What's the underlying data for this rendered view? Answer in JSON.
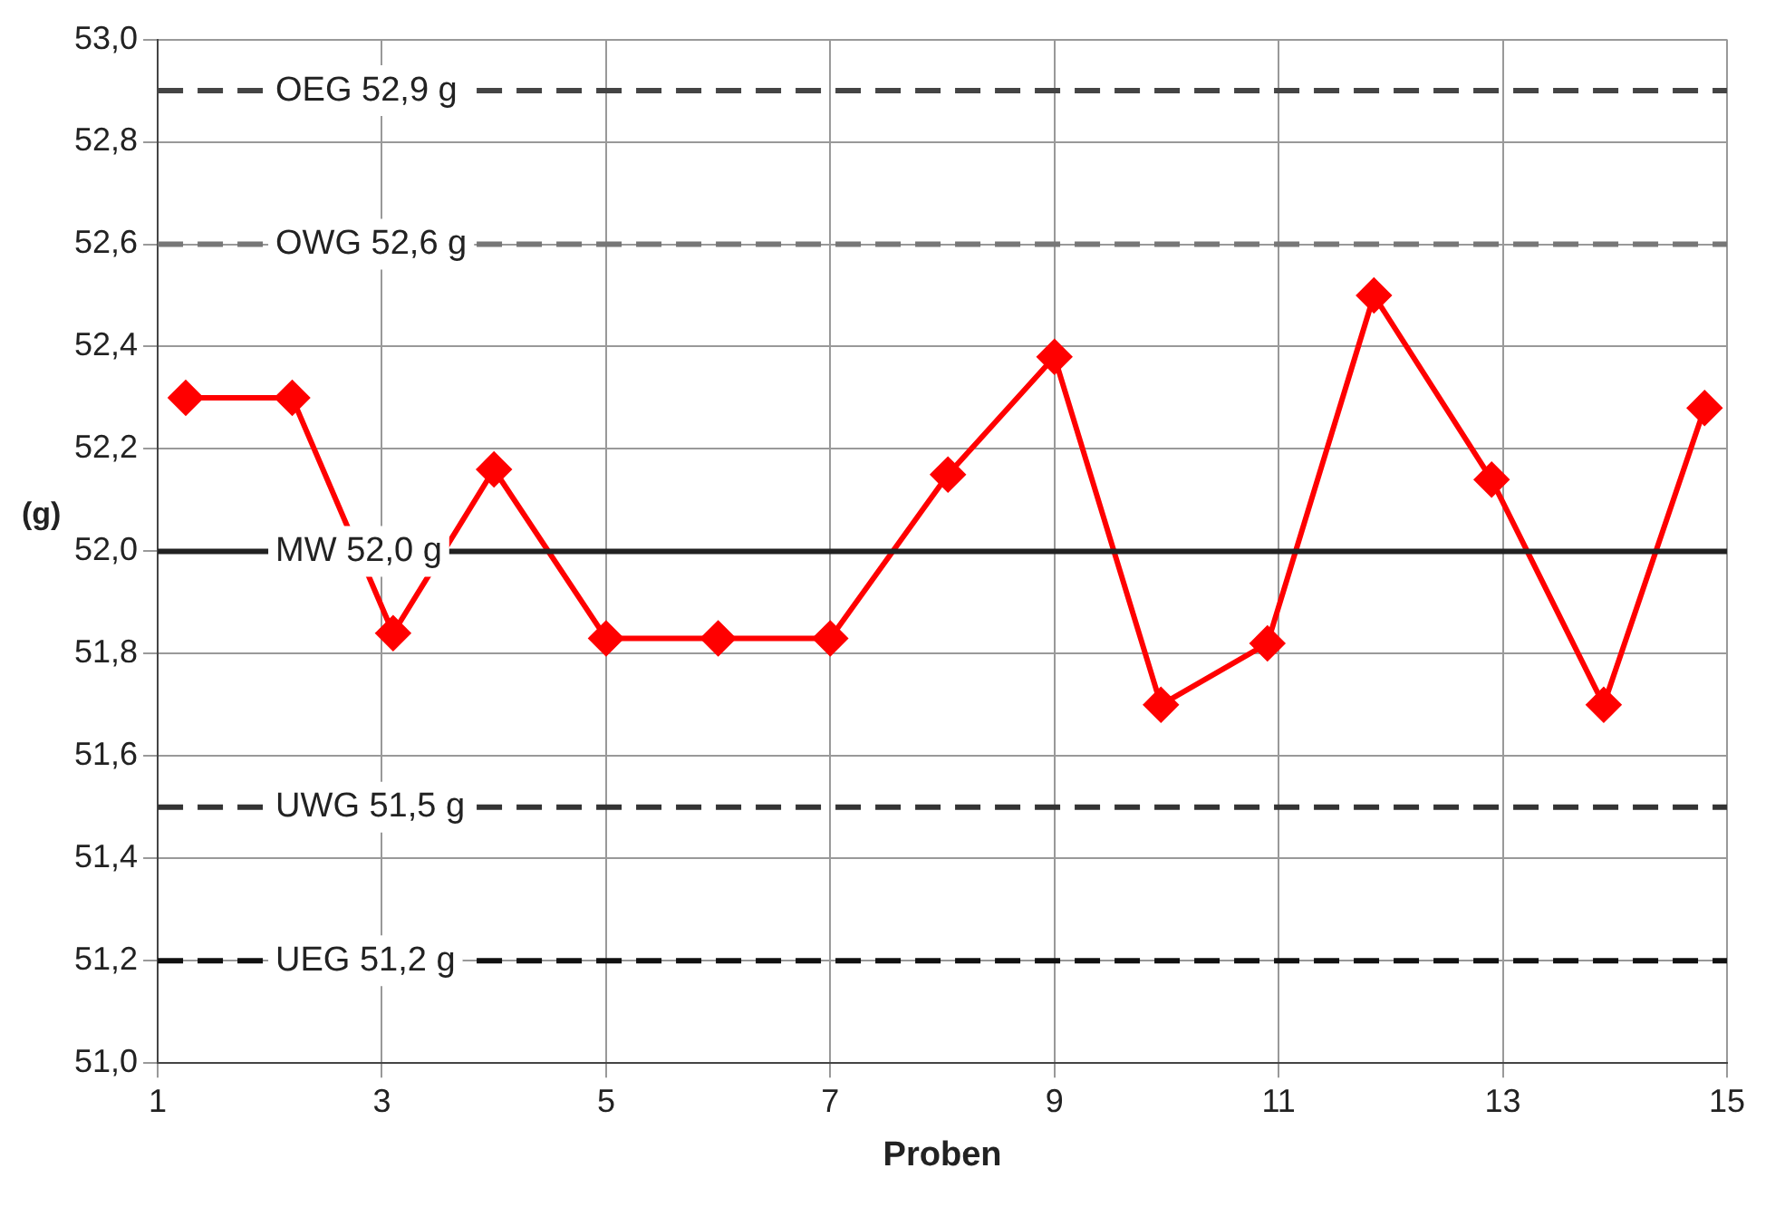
{
  "chart_data": {
    "type": "line",
    "xlabel": "Proben",
    "ylabel": "(g)",
    "x": [
      1.25,
      2.2,
      3.1,
      4,
      5,
      6,
      7,
      8.05,
      9,
      9.95,
      10.9,
      11.85,
      12.9,
      13.9,
      14.8
    ],
    "series": [
      {
        "color": "#ff0000",
        "values": [
          52.3,
          52.3,
          51.84,
          52.16,
          51.83,
          51.83,
          51.83,
          52.15,
          52.38,
          51.7,
          51.82,
          52.5,
          52.14,
          51.7,
          52.28
        ]
      }
    ],
    "xlim": [
      1,
      15
    ],
    "xticks": [
      1,
      3,
      5,
      7,
      9,
      11,
      13,
      15
    ],
    "ylim": [
      51,
      53
    ],
    "yticks": [
      {
        "value": 51,
        "label": "51,0"
      },
      {
        "value": 51.2,
        "label": "51,2"
      },
      {
        "value": 51.4,
        "label": "51,4"
      },
      {
        "value": 51.6,
        "label": "51,6"
      },
      {
        "value": 51.8,
        "label": "51,8"
      },
      {
        "value": 52,
        "label": "52,0"
      },
      {
        "value": 52.2,
        "label": "52,2"
      },
      {
        "value": 52.4,
        "label": "52,4"
      },
      {
        "value": 52.6,
        "label": "52,6"
      },
      {
        "value": 52.8,
        "label": "52,8"
      },
      {
        "value": 53,
        "label": "53,0"
      }
    ],
    "ref_lines": [
      {
        "axis": "y",
        "value": 52.9,
        "label": "OEG 52,9 g",
        "color": "#444444",
        "line_style": "dashed"
      },
      {
        "axis": "y",
        "value": 52.6,
        "label": "OWG 52,6 g",
        "color": "#777777",
        "line_style": "dashed"
      },
      {
        "axis": "y",
        "value": 52.0,
        "label": "MW 52,0 g",
        "color": "#222222",
        "line_style": "solid"
      },
      {
        "axis": "y",
        "value": 51.5,
        "label": "UWG 51,5 g",
        "color": "#333333",
        "line_style": "dashed"
      },
      {
        "axis": "y",
        "value": 51.2,
        "label": "UEG 51,2 g",
        "color": "#111111",
        "line_style": "dashed"
      }
    ],
    "grid": true,
    "legend": false,
    "marker": "diamond",
    "line_style": "solid"
  }
}
